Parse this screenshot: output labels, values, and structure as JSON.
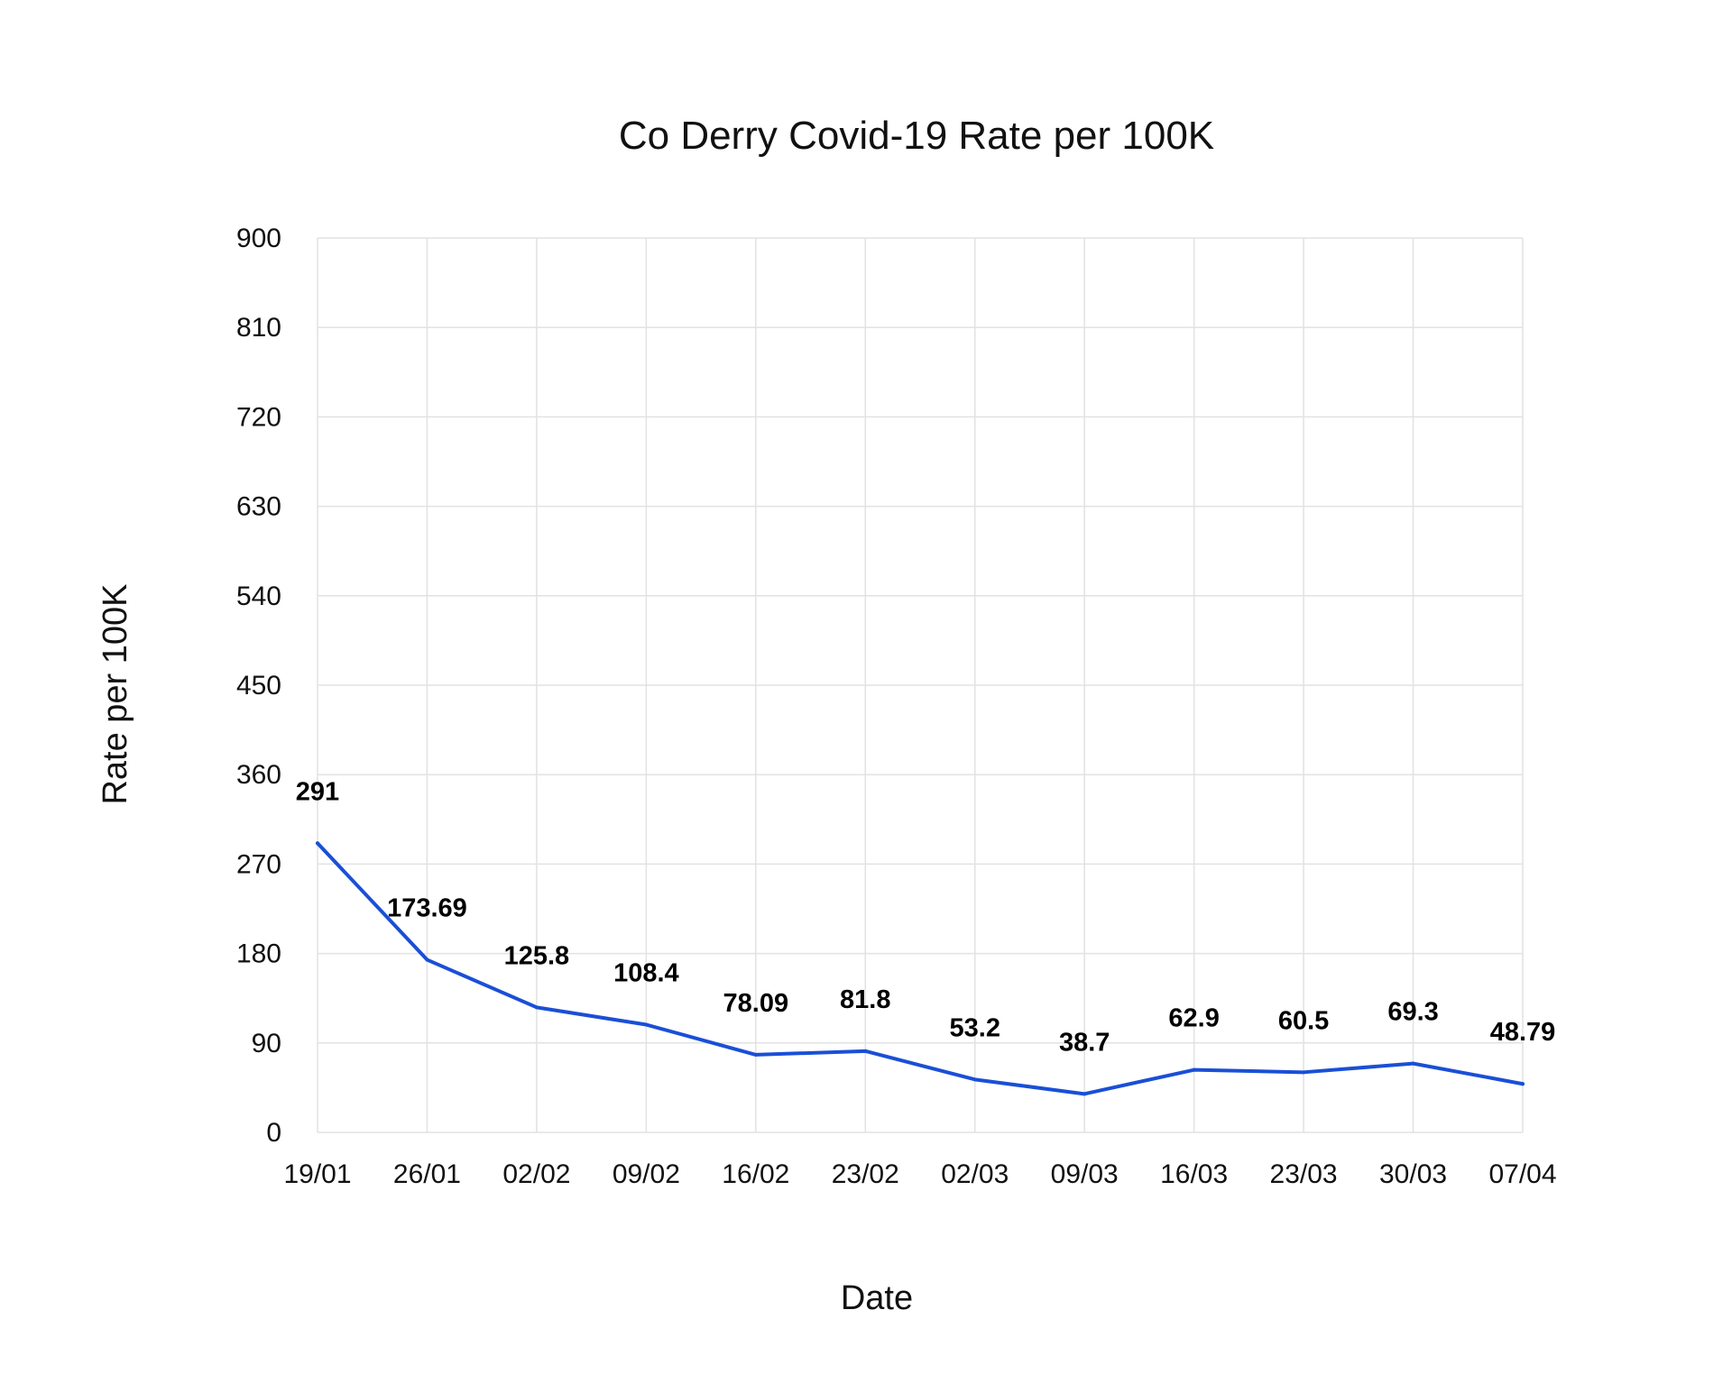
{
  "chart_data": {
    "type": "line",
    "title": "Co Derry Covid-19 Rate per 100K",
    "xlabel": "Date",
    "ylabel": "Rate per 100K",
    "categories": [
      "19/01",
      "26/01",
      "02/02",
      "09/02",
      "16/02",
      "23/02",
      "02/03",
      "09/03",
      "16/03",
      "23/03",
      "30/03",
      "07/04"
    ],
    "series": [
      {
        "values": [
          291,
          173.69,
          125.8,
          108.4,
          78.09,
          81.8,
          53.2,
          38.7,
          62.9,
          60.5,
          69.3,
          48.79
        ],
        "labels": [
          "291",
          "173.69",
          "125.8",
          "108.4",
          "78.09",
          "81.8",
          "53.2",
          "38.7",
          "62.9",
          "60.5",
          "69.3",
          "48.79"
        ],
        "color": "#1a4fd6"
      }
    ],
    "ylim": [
      0,
      900
    ],
    "yticks": [
      "0",
      "90",
      "180",
      "270",
      "360",
      "450",
      "540",
      "630",
      "720",
      "810",
      "900"
    ],
    "grid": true,
    "legend": "none"
  }
}
